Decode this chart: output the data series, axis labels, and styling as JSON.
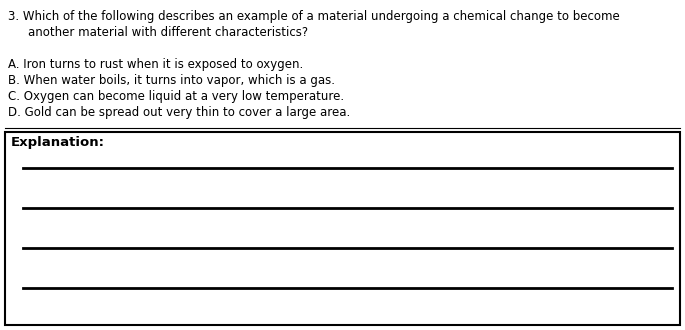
{
  "question_number": "3.",
  "question_line1": "Which of the following describes an example of a material undergoing a chemical change to become",
  "question_line2": "another material with different characteristics?",
  "options": [
    "A. Iron turns to rust when it is exposed to oxygen.",
    "B. When water boils, it turns into vapor, which is a gas.",
    "C. Oxygen can become liquid at a very low temperature.",
    "D. Gold can be spread out very thin to cover a large area."
  ],
  "explanation_label": "Explanation:",
  "background_color": "#ffffff",
  "text_color": "#000000",
  "font_size_question": 8.5,
  "font_size_options": 8.5,
  "font_size_explanation": 9.5,
  "num_lines": 4,
  "fig_width": 6.85,
  "fig_height": 3.3,
  "dpi": 100
}
